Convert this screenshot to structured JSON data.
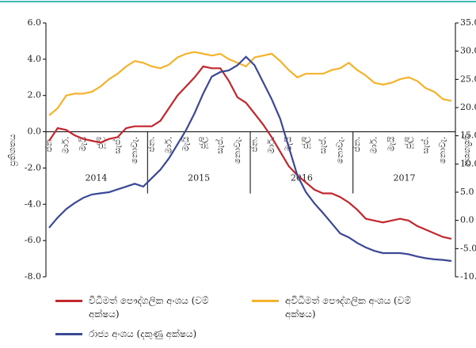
{
  "chart_data": {
    "type": "line",
    "y_label": "ප්‍රතිශතය",
    "y2_label": "ප්‍රතිශතය",
    "categories": [
      "ජන.",
      null,
      "මාර්.",
      null,
      "මැයි",
      null,
      "ජූලි",
      null,
      "සැප්.",
      null,
      "නොවැ.",
      null,
      "ජන.",
      null,
      "මාර්.",
      null,
      "මැයි",
      null,
      "ජූලි",
      null,
      "සැප්.",
      null,
      "නොවැ.",
      null,
      "ජන.",
      null,
      "මාර්.",
      null,
      "මැයි",
      null,
      "ජූලි",
      null,
      "සැප්.",
      null,
      "නොවැ.",
      null,
      "ජන.",
      null,
      "මාර්.",
      null,
      "මැයි",
      null,
      "ජූලි",
      null,
      "සැප්.",
      null,
      "නොවැ.",
      null
    ],
    "year_labels": [
      "2014",
      "2015",
      "2016",
      "2017"
    ],
    "series": [
      {
        "name": "විධිමත් පෞද්ගලික අංශය (වම් අක්ෂය)",
        "color": "#c1272d",
        "values": [
          -0.5,
          0.2,
          0.1,
          -0.2,
          -0.4,
          -0.5,
          -0.6,
          -0.4,
          -0.3,
          0.2,
          0.3,
          0.3,
          0.3,
          0.6,
          1.3,
          2.0,
          2.5,
          3.0,
          3.6,
          3.5,
          3.5,
          2.8,
          1.9,
          1.6,
          1.0,
          0.4,
          -0.3,
          -1.1,
          -1.9,
          -2.4,
          -2.8,
          -3.2,
          -3.4,
          -3.4,
          -3.6,
          -3.9,
          -4.3,
          -4.8,
          -4.9,
          -5.0,
          -4.9,
          -4.8,
          -4.9,
          -5.2,
          -5.4,
          -5.6,
          -5.8,
          -5.9
        ]
      },
      {
        "name": "අවිධිමත් පෞද්ගලික අංශය (වම් අක්ෂය)",
        "color": "#f5b32b",
        "values": [
          0.9,
          1.3,
          2.0,
          2.1,
          2.1,
          2.2,
          2.5,
          2.9,
          3.2,
          3.6,
          3.9,
          3.8,
          3.6,
          3.5,
          3.7,
          4.1,
          4.3,
          4.4,
          4.3,
          4.2,
          4.3,
          4.0,
          3.8,
          3.6,
          4.1,
          4.2,
          4.3,
          3.9,
          3.4,
          3.0,
          3.2,
          3.2,
          3.2,
          3.4,
          3.5,
          3.8,
          3.4,
          3.1,
          2.7,
          2.6,
          2.7,
          2.9,
          3.0,
          2.8,
          2.4,
          2.2,
          1.8,
          1.7
        ]
      },
      {
        "name": "රාජ්‍ය අංශය (දකුණු අක්ෂය)",
        "color": "#3b4896",
        "axis": "y2",
        "values": [
          -1.3,
          0.5,
          2.0,
          3.1,
          4.0,
          4.6,
          4.8,
          5.0,
          5.5,
          6.0,
          6.5,
          6.0,
          7.5,
          9.0,
          11.0,
          13.5,
          16.0,
          19.0,
          22.5,
          25.5,
          26.3,
          26.6,
          27.5,
          29.0,
          27.5,
          24.5,
          21.5,
          18.0,
          13.0,
          8.0,
          5.0,
          3.0,
          1.3,
          -0.5,
          -2.3,
          -3.0,
          -4.0,
          -4.8,
          -5.4,
          -5.8,
          -5.8,
          -5.8,
          -6.0,
          -6.4,
          -6.7,
          -6.9,
          -7.0,
          -7.2
        ]
      }
    ],
    "ylim": [
      -8,
      6
    ],
    "yticks": [
      {
        "value": -8,
        "label": "-8.0"
      },
      {
        "value": -6,
        "label": "-6.0"
      },
      {
        "value": -4,
        "label": "-4.0"
      },
      {
        "value": -2,
        "label": "-2.0"
      },
      {
        "value": 0,
        "label": "0.0"
      },
      {
        "value": 2,
        "label": "2.0"
      },
      {
        "value": 4,
        "label": "4.0"
      },
      {
        "value": 6,
        "label": "6.0"
      }
    ],
    "y2lim": [
      -10,
      35
    ],
    "y2ticks": [
      {
        "value": -10,
        "label": "-10.0"
      },
      {
        "value": -5,
        "label": "-5.0"
      },
      {
        "value": 0,
        "label": "0.0"
      },
      {
        "value": 5,
        "label": "5.0"
      },
      {
        "value": 10,
        "label": "10.0"
      },
      {
        "value": 15,
        "label": "15.0"
      },
      {
        "value": 20,
        "label": "20.0"
      },
      {
        "value": 25,
        "label": "25.0"
      },
      {
        "value": 30,
        "label": "30.0"
      },
      {
        "value": 35,
        "label": "35.0"
      }
    ]
  }
}
